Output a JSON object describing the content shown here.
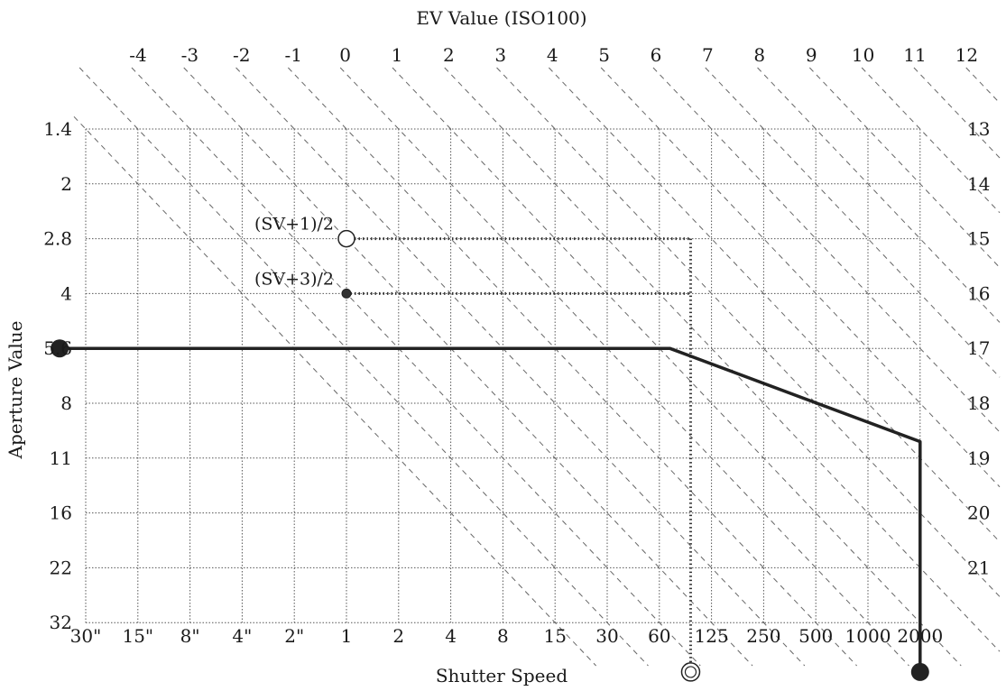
{
  "chart_data": {
    "type": "line",
    "top_axis_title": "EV Value (ISO100)",
    "xlabel": "Shutter Speed",
    "ylabel": "Aperture Value",
    "x_ticks": [
      "30\"",
      "15\"",
      "8\"",
      "4\"",
      "2\"",
      "1",
      "2",
      "4",
      "8",
      "15",
      "30",
      "60",
      "125",
      "250",
      "500",
      "1000",
      "2000"
    ],
    "y_ticks": [
      "1.4",
      "2",
      "2.8",
      "4",
      "5.6",
      "8",
      "11",
      "16",
      "22",
      "32"
    ],
    "ev_top_labels": [
      "-4",
      "-3",
      "-2",
      "-1",
      "0",
      "1",
      "2",
      "3",
      "4",
      "5",
      "6",
      "7",
      "8",
      "9",
      "10",
      "11",
      "12"
    ],
    "ev_right_labels": [
      "13",
      "14",
      "15",
      "16",
      "17",
      "18",
      "19",
      "20",
      "21"
    ],
    "grid": true,
    "program_line": {
      "x_index": [
        -0.5,
        11.2,
        16,
        16
      ],
      "y_index": [
        4,
        4,
        5.7,
        10
      ]
    },
    "annotations": [
      {
        "text": "(SV+1)/2",
        "x_index": 5,
        "y_index": 2,
        "marker": "open-circle"
      },
      {
        "text": "(SV+3)/2",
        "x_index": 5,
        "y_index": 3,
        "marker": "dot"
      }
    ],
    "dotted_guides": {
      "h1": {
        "y_index": 2,
        "x_from": 5,
        "x_to": 11.6
      },
      "h2": {
        "y_index": 3,
        "x_from": 5,
        "x_to": 11.6
      },
      "v": {
        "x_index": 11.6,
        "y_from": 2,
        "y_to": 9.9
      }
    },
    "end_markers": [
      {
        "x_index": -0.5,
        "y_index": 4,
        "marker": "filled"
      },
      {
        "x_index": 16,
        "y_index": 9.9,
        "marker": "filled"
      },
      {
        "x_index": 11.6,
        "y_index": 9.9,
        "marker": "double-circle"
      }
    ]
  }
}
